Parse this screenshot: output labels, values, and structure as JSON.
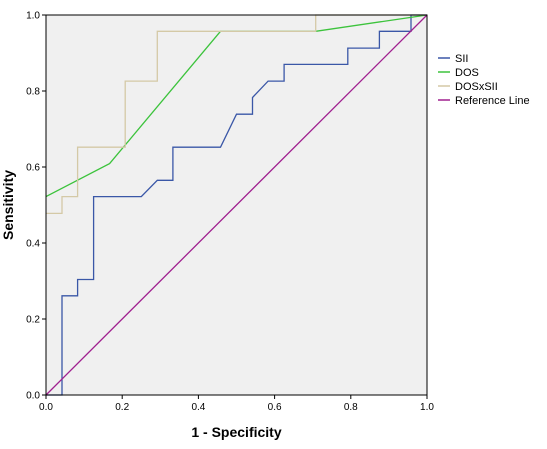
{
  "chart_data": {
    "type": "line",
    "xlabel": "1 - Specificity",
    "ylabel": "Sensitivity",
    "xlim": [
      0,
      1
    ],
    "ylim": [
      0,
      1
    ],
    "x_ticks": [
      "0.0",
      "0.2",
      "0.4",
      "0.6",
      "0.8",
      "1.0"
    ],
    "y_ticks": [
      "0.0",
      "0.2",
      "0.4",
      "0.6",
      "0.8",
      "1.0"
    ],
    "grid": false,
    "legend_position": "right",
    "background_color": "#f0f0f0",
    "series": [
      {
        "name": "SII",
        "color": "#3a57a7",
        "step": true,
        "points": [
          [
            0,
            0
          ],
          [
            0.042,
            0
          ],
          [
            0.042,
            0.261
          ],
          [
            0.083,
            0.261
          ],
          [
            0.083,
            0.304
          ],
          [
            0.125,
            0.304
          ],
          [
            0.125,
            0.522
          ],
          [
            0.25,
            0.522
          ],
          [
            0.292,
            0.565
          ],
          [
            0.333,
            0.565
          ],
          [
            0.333,
            0.652
          ],
          [
            0.458,
            0.652
          ],
          [
            0.5,
            0.739
          ],
          [
            0.542,
            0.739
          ],
          [
            0.542,
            0.783
          ],
          [
            0.583,
            0.826
          ],
          [
            0.625,
            0.826
          ],
          [
            0.625,
            0.87
          ],
          [
            0.792,
            0.87
          ],
          [
            0.792,
            0.913
          ],
          [
            0.875,
            0.913
          ],
          [
            0.875,
            0.957
          ],
          [
            0.958,
            0.957
          ],
          [
            0.958,
            1.0
          ],
          [
            1.0,
            1.0
          ]
        ]
      },
      {
        "name": "DOS",
        "color": "#3cc33c",
        "step": false,
        "points": [
          [
            0,
            0.522
          ],
          [
            0.167,
            0.609
          ],
          [
            0.458,
            0.957
          ],
          [
            0.708,
            0.957
          ],
          [
            1.0,
            1.0
          ]
        ]
      },
      {
        "name": "DOSxSII",
        "color": "#d4c9a6",
        "step": true,
        "points": [
          [
            0,
            0.478
          ],
          [
            0.042,
            0.478
          ],
          [
            0.042,
            0.522
          ],
          [
            0.083,
            0.522
          ],
          [
            0.083,
            0.652
          ],
          [
            0.208,
            0.652
          ],
          [
            0.208,
            0.826
          ],
          [
            0.292,
            0.826
          ],
          [
            0.292,
            0.957
          ],
          [
            0.708,
            0.957
          ],
          [
            0.708,
            1.0
          ],
          [
            1.0,
            1.0
          ]
        ]
      },
      {
        "name": "Reference Line",
        "color": "#a0208f",
        "step": false,
        "points": [
          [
            0,
            0
          ],
          [
            1,
            1
          ]
        ]
      }
    ]
  }
}
